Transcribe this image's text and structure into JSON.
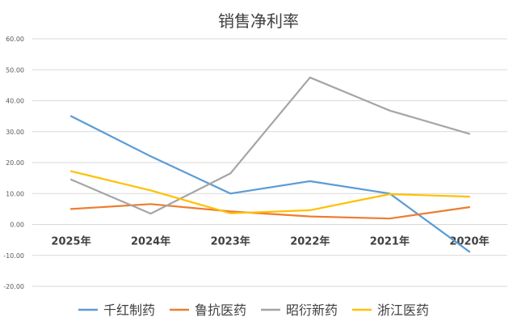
{
  "chart_data": {
    "type": "line",
    "title": "销售净利率",
    "categories": [
      "2025年",
      "2024年",
      "2023年",
      "2022年",
      "2021年",
      "2020年"
    ],
    "ylim": [
      -20,
      60
    ],
    "yticks": [
      "-20.00",
      "-10.00",
      "0.00",
      "10.00",
      "20.00",
      "30.00",
      "40.00",
      "50.00",
      "60.00"
    ],
    "grid": true,
    "legend_position": "bottom",
    "series": [
      {
        "name": "千红制药",
        "color": "#5B9BD5",
        "values": [
          35.0,
          22.0,
          10.0,
          14.0,
          10.0,
          -8.8
        ]
      },
      {
        "name": "鲁抗医药",
        "color": "#ED7D31",
        "values": [
          5.0,
          6.6,
          4.2,
          2.6,
          1.9,
          5.6
        ]
      },
      {
        "name": "昭衍新药",
        "color": "#A5A5A5",
        "values": [
          14.5,
          3.5,
          16.5,
          47.5,
          36.8,
          29.3
        ]
      },
      {
        "name": "浙江医药",
        "color": "#FFC000",
        "values": [
          17.2,
          11.0,
          3.6,
          4.6,
          9.8,
          9.0
        ]
      }
    ]
  }
}
